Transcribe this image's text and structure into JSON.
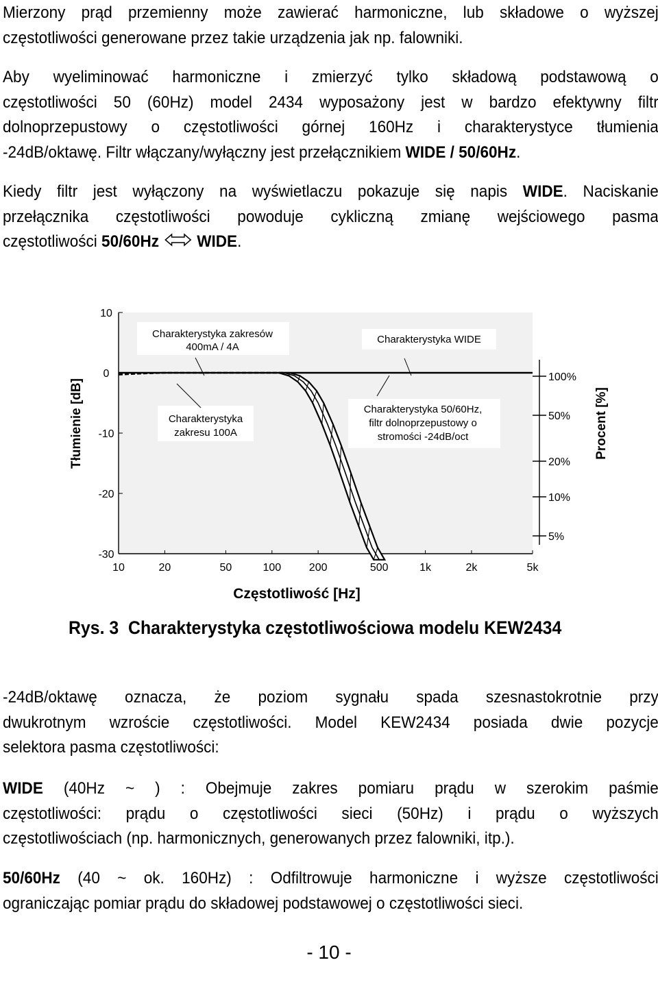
{
  "intro": {
    "l1": "Mierzony prąd przemienny może zawierać harmoniczne, lub składowe o wyższej",
    "l2": "częstotliwości generowane przez takie urządzenia jak np. falowniki."
  },
  "p2": {
    "l1": "Aby wyeliminować harmoniczne i zmierzyć tylko składową podstawową o",
    "l2": "częstotliwości 50 (60Hz) model 2434 wyposażony jest w bardzo efektywny filtr",
    "l3": "dolnoprzepustowy o częstotliwości górnej 160Hz i charakterystyce tłumienia",
    "l4a": "-24dB/oktawę. Filtr włączany/wyłączny jest przełącznikiem ",
    "l4b": "WIDE / 50/60Hz",
    "l4c": "."
  },
  "p3": {
    "l1a": "Kiedy filtr jest wyłączony na wyświetlaczu pokazuje się napis ",
    "l1b": "WIDE",
    "l1c": ". Naciskanie",
    "l2": "przełącznika częstotliwości powoduje cykliczną zmianę wejściowego pasma",
    "l3a": "częstotliwości ",
    "l3b": "50/60Hz",
    "l3c": "WIDE",
    "l3d": "."
  },
  "chart_data": {
    "type": "line",
    "xlabel": "Częstotliwość [Hz]",
    "ylabel": "Tłumienie [dB]",
    "ylabel_right": "Procent [%]",
    "x_scale": "log",
    "x_ticks": [
      "10",
      "20",
      "50",
      "100",
      "200",
      "500",
      "1k",
      "2k",
      "5k"
    ],
    "y_ticks": [
      "10",
      "0",
      "-10",
      "-20",
      "-30"
    ],
    "y_right_ticks": [
      "100%",
      "50%",
      "20%",
      "10%",
      "5%"
    ],
    "xlim": [
      10,
      5000
    ],
    "ylim": [
      -30,
      10
    ],
    "grid": false,
    "series": [
      {
        "x": [
          10,
          12,
          15,
          20,
          30,
          50,
          80,
          120
        ],
        "y": [
          -0.3,
          -0.2,
          -0.1,
          0,
          0,
          0,
          0,
          0
        ]
      },
      {
        "x": [
          10,
          50,
          100,
          200,
          500,
          1000,
          2000,
          5000
        ],
        "y": [
          0,
          0,
          0,
          0,
          0,
          0,
          0,
          0
        ]
      },
      {
        "x": [
          120,
          140,
          160,
          180,
          200,
          230,
          260,
          300,
          350,
          400,
          450,
          500
        ],
        "y": [
          0,
          -0.5,
          -1.5,
          -3,
          -5,
          -8.5,
          -12,
          -16.5,
          -21.5,
          -25.5,
          -29,
          -31
        ]
      }
    ],
    "annotations": [
      {
        "lines": [
          "Charakterystyka zakresów",
          "400mA / 4A"
        ]
      },
      {
        "lines": [
          "Charakterystyka WIDE"
        ]
      },
      {
        "lines": [
          "Charakterystyka",
          "zakresu 100A"
        ]
      },
      {
        "lines": [
          "Charakterystyka 50/60Hz,",
          "filtr dolnoprzepustowy o",
          "stromości -24dB/oct"
        ]
      }
    ]
  },
  "caption": {
    "a": "Rys. 3",
    "b": "Charakterystyka częstotliwościowa modelu KEW2434"
  },
  "p4": {
    "l1": "-24dB/oktawę oznacza, że poziom sygnału spada szesnastokrotnie przy",
    "l2": "dwukrotnym wzroście częstotliwości. Model KEW2434 posiada dwie pozycje",
    "l3": "selektora pasma częstotliwości:"
  },
  "p5": {
    "l1a": "WIDE",
    "l1b": " (40Hz ~ ) : Obejmuje zakres pomiaru prądu w szerokim paśmie",
    "l2": "częstotliwości: prądu o częstotliwości sieci (50Hz) i prądu o wyższych",
    "l3": "częstotliwościach (np. harmonicznych, generowanych przez falowniki, itp.)."
  },
  "p6": {
    "l1a": "50/60Hz",
    "l1b": " (40 ~ ok. 160Hz) : Odfiltrowuje harmoniczne i wyższe częstotliwości",
    "l2": "ograniczając pomiar prądu do składowej podstawowej o częstotliwości sieci."
  },
  "page_number": "- 10 -"
}
